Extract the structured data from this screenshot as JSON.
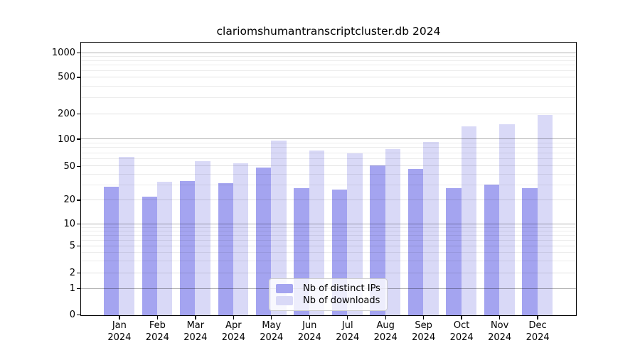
{
  "title": "clariomshumantranscriptcluster.db 2024",
  "colors": {
    "ips": "#a4a4f0",
    "downloads": "#d9d9f7",
    "axis": "#000000"
  },
  "legend": {
    "items": [
      {
        "label": "Nb of distinct IPs",
        "series": "ips"
      },
      {
        "label": "Nb of downloads",
        "series": "downloads"
      }
    ]
  },
  "chart_data": {
    "type": "bar",
    "title": "clariomshumantranscriptcluster.db 2024",
    "categories": [
      "Jan 2024",
      "Feb 2024",
      "Mar 2024",
      "Apr 2024",
      "May 2024",
      "Jun 2024",
      "Jul 2024",
      "Aug 2024",
      "Sep 2024",
      "Oct 2024",
      "Nov 2024",
      "Dec 2024"
    ],
    "series": [
      {
        "name": "Nb of distinct IPs",
        "color": "#a4a4f0",
        "values": [
          29,
          22,
          34,
          32,
          49,
          28,
          27,
          52,
          47,
          28,
          31,
          28
        ]
      },
      {
        "name": "Nb of downloads",
        "color": "#d9d9f7",
        "values": [
          64,
          33,
          57,
          54,
          97,
          75,
          70,
          78,
          93,
          143,
          153,
          195
        ]
      }
    ],
    "xlabel": "",
    "ylabel": "",
    "yscale": "symlog",
    "yticks": [
      0,
      1,
      2,
      5,
      10,
      20,
      50,
      100,
      200,
      500,
      1000
    ],
    "ylim": [
      0,
      1300
    ],
    "grid": true,
    "legend_position": "lower center"
  }
}
